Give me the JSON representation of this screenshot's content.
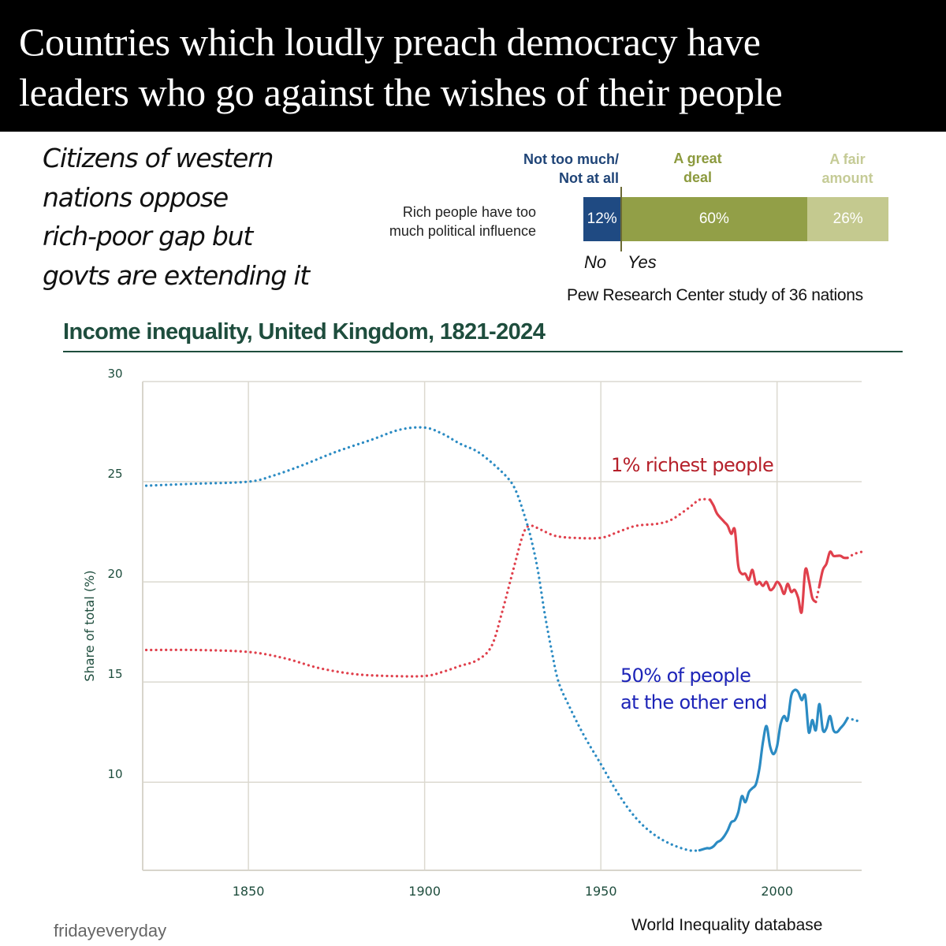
{
  "banner": {
    "lines": [
      "Countries which loudly preach democracy have",
      "leaders who go against the wishes of their people"
    ]
  },
  "subtitle": {
    "lines": [
      "Citizens of western",
      "nations oppose",
      "rich-poor gap but",
      "govts are extending it"
    ]
  },
  "footer": {
    "left": "fridayeveryday",
    "right": "World Inequality database"
  },
  "chart_data": [
    {
      "type": "bar",
      "orientation": "horizontal-stacked",
      "title": "",
      "categories": [
        "Rich people have too much political influence"
      ],
      "question_lines": [
        "Rich people have too",
        "much political influence"
      ],
      "series": [
        {
          "name": "Not too much/ Not at all",
          "name_lines": [
            "Not too much/",
            "Not at all"
          ],
          "values": [
            12
          ],
          "label": "12%",
          "color": "#1f4a82"
        },
        {
          "name": "A great deal",
          "name_lines": [
            "A great",
            "deal"
          ],
          "values": [
            60
          ],
          "label": "60%",
          "color": "#929f47"
        },
        {
          "name": "A fair amount",
          "name_lines": [
            "A fair",
            "amount"
          ],
          "values": [
            26
          ],
          "label": "26%",
          "color": "#c4c98f"
        }
      ],
      "annotations": {
        "no": "No",
        "yes": "Yes"
      },
      "source": "Pew Research Center study of 36 nations",
      "header_colors": {
        "no": "#1f4477",
        "great": "#8c9a3e",
        "fair": "#c5cb96"
      }
    },
    {
      "type": "line",
      "title": "Income inequality, United Kingdom, 1821-2024",
      "xlabel": "",
      "ylabel": "Share of total (%)",
      "xlim": [
        1820,
        2024
      ],
      "ylim": [
        5.6,
        30
      ],
      "xticks": [
        1850,
        1900,
        1950,
        2000
      ],
      "yticks": [
        10,
        15,
        20,
        25,
        30
      ],
      "grid": true,
      "series": [
        {
          "name": "1% richest people",
          "label_color": "#b5202a",
          "color": "#e0404c",
          "segments": [
            {
              "style": "dotted",
              "points": [
                [
                  1821,
                  16.6
                ],
                [
                  1835,
                  16.6
                ],
                [
                  1850,
                  16.5
                ],
                [
                  1860,
                  16.2
                ],
                [
                  1870,
                  15.7
                ],
                [
                  1880,
                  15.4
                ],
                [
                  1890,
                  15.3
                ],
                [
                  1900,
                  15.3
                ],
                [
                  1905,
                  15.5
                ],
                [
                  1910,
                  15.8
                ],
                [
                  1915,
                  16.1
                ],
                [
                  1919,
                  16.8
                ],
                [
                  1922,
                  18.5
                ],
                [
                  1925,
                  20.5
                ],
                [
                  1928,
                  22.4
                ],
                [
                  1930,
                  22.8
                ],
                [
                  1933,
                  22.6
                ],
                [
                  1937,
                  22.3
                ],
                [
                  1942,
                  22.2
                ],
                [
                  1950,
                  22.2
                ],
                [
                  1955,
                  22.5
                ],
                [
                  1960,
                  22.8
                ],
                [
                  1966,
                  22.9
                ],
                [
                  1970,
                  23.1
                ],
                [
                  1975,
                  23.7
                ],
                [
                  1978,
                  24.1
                ],
                [
                  1981,
                  24.1
                ]
              ]
            },
            {
              "style": "solid",
              "points": [
                [
                  1981,
                  24.1
                ],
                [
                  1982,
                  23.8
                ],
                [
                  1983,
                  23.4
                ],
                [
                  1985,
                  23.0
                ],
                [
                  1986,
                  22.8
                ],
                [
                  1987,
                  22.4
                ],
                [
                  1988,
                  22.6
                ],
                [
                  1989,
                  20.8
                ],
                [
                  1990,
                  20.4
                ],
                [
                  1991,
                  20.4
                ],
                [
                  1992,
                  20.1
                ],
                [
                  1993,
                  20.6
                ],
                [
                  1994,
                  19.9
                ],
                [
                  1995,
                  20.0
                ],
                [
                  1996,
                  19.8
                ],
                [
                  1997,
                  20.0
                ],
                [
                  1998,
                  19.6
                ],
                [
                  1999,
                  19.7
                ],
                [
                  2000,
                  20.0
                ],
                [
                  2001,
                  19.8
                ],
                [
                  2002,
                  19.4
                ],
                [
                  2003,
                  19.9
                ],
                [
                  2004,
                  19.5
                ],
                [
                  2005,
                  19.6
                ],
                [
                  2006,
                  19.2
                ],
                [
                  2007,
                  18.5
                ],
                [
                  2008,
                  20.6
                ],
                [
                  2009,
                  20.1
                ],
                [
                  2010,
                  19.2
                ],
                [
                  2011,
                  19.0
                ]
              ]
            },
            {
              "style": "dotted",
              "points": [
                [
                  2011,
                  19.0
                ],
                [
                  2012,
                  19.8
                ]
              ]
            },
            {
              "style": "solid",
              "points": [
                [
                  2012,
                  19.8
                ],
                [
                  2013,
                  20.6
                ],
                [
                  2014,
                  20.9
                ],
                [
                  2015,
                  21.5
                ],
                [
                  2016,
                  21.3
                ],
                [
                  2017,
                  21.3
                ],
                [
                  2018,
                  21.3
                ],
                [
                  2019,
                  21.2
                ],
                [
                  2020,
                  21.2
                ]
              ]
            },
            {
              "style": "dotted",
              "points": [
                [
                  2020,
                  21.2
                ],
                [
                  2022,
                  21.4
                ],
                [
                  2024,
                  21.5
                ]
              ]
            }
          ]
        },
        {
          "name": "50% of people at the other end",
          "name_lines": [
            "50% of people",
            "at the other end"
          ],
          "label_color": "#1d24b8",
          "color": "#2b8bc3",
          "segments": [
            {
              "style": "dotted",
              "points": [
                [
                  1821,
                  24.8
                ],
                [
                  1835,
                  24.9
                ],
                [
                  1850,
                  25.0
                ],
                [
                  1857,
                  25.3
                ],
                [
                  1865,
                  25.8
                ],
                [
                  1875,
                  26.5
                ],
                [
                  1885,
                  27.1
                ],
                [
                  1893,
                  27.6
                ],
                [
                  1900,
                  27.7
                ],
                [
                  1905,
                  27.4
                ],
                [
                  1910,
                  26.9
                ],
                [
                  1915,
                  26.5
                ],
                [
                  1920,
                  25.8
                ],
                [
                  1924,
                  25.1
                ],
                [
                  1926,
                  24.5
                ],
                [
                  1928,
                  23.5
                ],
                [
                  1930,
                  22.3
                ],
                [
                  1932,
                  20.7
                ],
                [
                  1934,
                  18.5
                ],
                [
                  1936,
                  16.6
                ],
                [
                  1938,
                  15.0
                ],
                [
                  1941,
                  13.8
                ],
                [
                  1945,
                  12.4
                ],
                [
                  1950,
                  10.9
                ],
                [
                  1955,
                  9.4
                ],
                [
                  1960,
                  8.2
                ],
                [
                  1965,
                  7.4
                ],
                [
                  1970,
                  6.9
                ],
                [
                  1975,
                  6.6
                ],
                [
                  1978,
                  6.6
                ]
              ]
            },
            {
              "style": "solid",
              "points": [
                [
                  1978,
                  6.6
                ],
                [
                  1980,
                  6.7
                ],
                [
                  1981,
                  6.7
                ],
                [
                  1982,
                  6.8
                ],
                [
                  1983,
                  7.0
                ],
                [
                  1984,
                  7.1
                ],
                [
                  1985,
                  7.3
                ],
                [
                  1986,
                  7.6
                ],
                [
                  1987,
                  8.0
                ],
                [
                  1988,
                  8.1
                ],
                [
                  1989,
                  8.5
                ],
                [
                  1990,
                  9.3
                ],
                [
                  1991,
                  9.0
                ],
                [
                  1992,
                  9.5
                ],
                [
                  1993,
                  9.7
                ],
                [
                  1994,
                  9.9
                ],
                [
                  1995,
                  10.7
                ],
                [
                  1996,
                  12.0
                ],
                [
                  1997,
                  12.8
                ],
                [
                  1998,
                  11.8
                ],
                [
                  1999,
                  11.4
                ],
                [
                  2000,
                  11.8
                ],
                [
                  2001,
                  12.9
                ],
                [
                  2002,
                  13.3
                ],
                [
                  2003,
                  13.1
                ],
                [
                  2004,
                  14.3
                ],
                [
                  2005,
                  14.6
                ],
                [
                  2006,
                  14.5
                ],
                [
                  2007,
                  14.1
                ],
                [
                  2008,
                  14.3
                ],
                [
                  2009,
                  12.5
                ],
                [
                  2010,
                  13.1
                ],
                [
                  2011,
                  12.6
                ],
                [
                  2012,
                  13.9
                ],
                [
                  2013,
                  12.6
                ],
                [
                  2014,
                  12.7
                ],
                [
                  2015,
                  13.3
                ],
                [
                  2016,
                  12.6
                ],
                [
                  2017,
                  12.5
                ],
                [
                  2018,
                  12.7
                ],
                [
                  2019,
                  12.9
                ],
                [
                  2020,
                  13.2
                ]
              ]
            },
            {
              "style": "dotted",
              "points": [
                [
                  2020,
                  13.2
                ],
                [
                  2022,
                  13.1
                ],
                [
                  2024,
                  13.0
                ]
              ]
            }
          ]
        }
      ],
      "gridline_color": "#dcd9d0",
      "axis_text_color": "#1e4d3d"
    }
  ]
}
